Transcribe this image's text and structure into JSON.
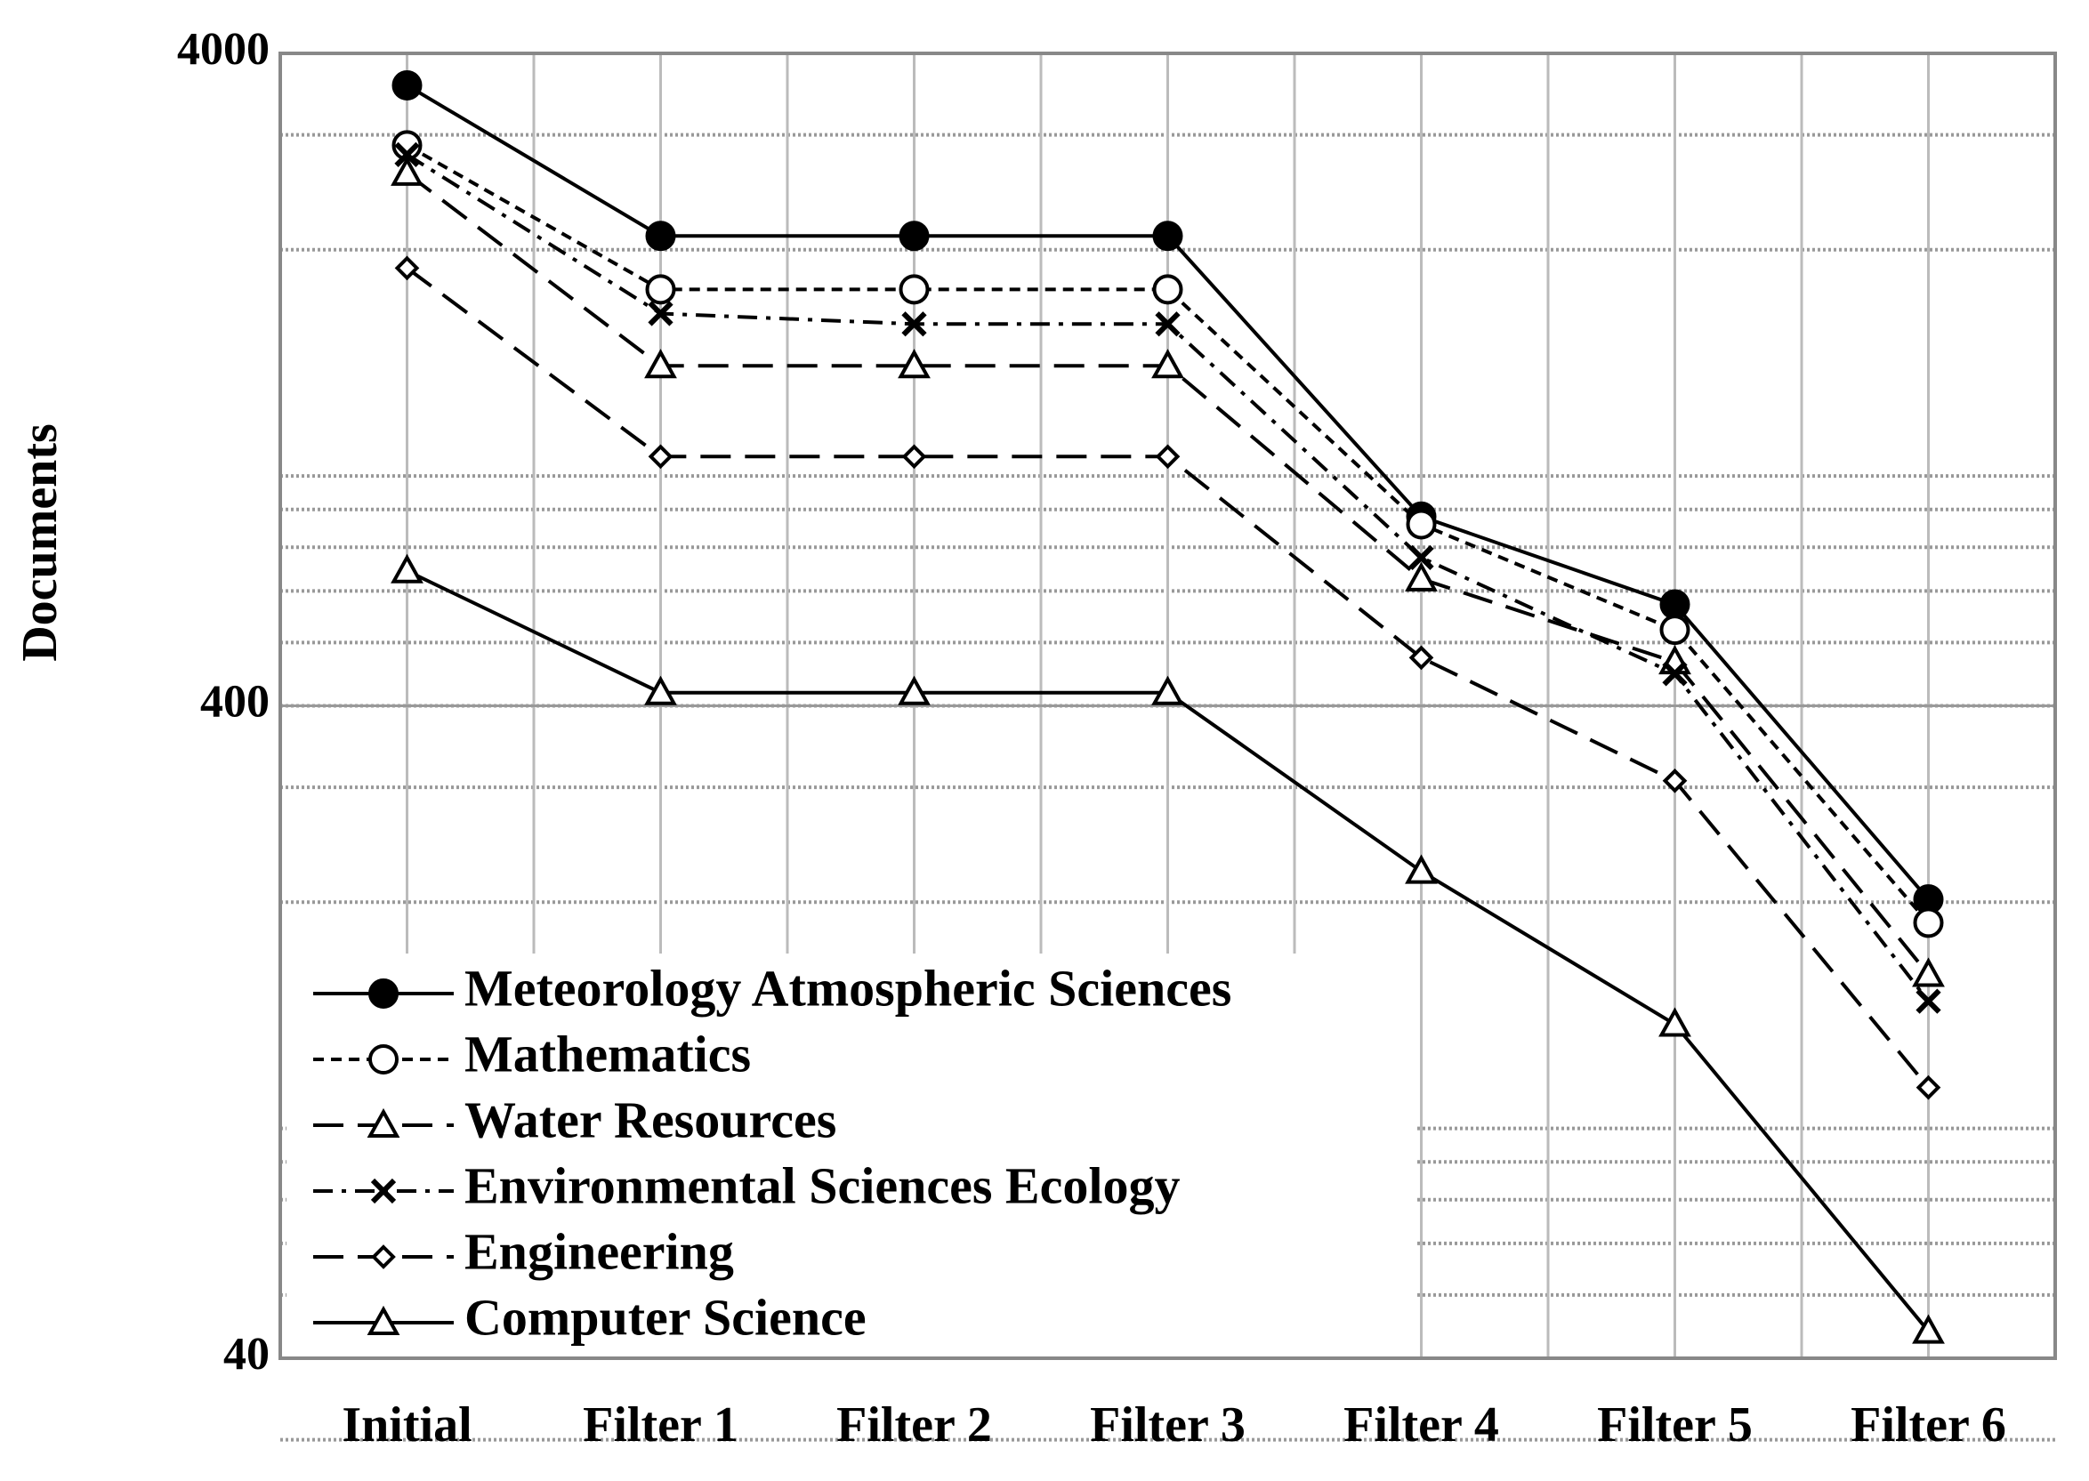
{
  "chart_data": {
    "type": "line",
    "y_label": "Documents",
    "categories": [
      "Initial",
      "Filter 1",
      "Filter 2",
      "Filter 3",
      "Filter 4",
      "Filter 5",
      "Filter 6"
    ],
    "ylim": [
      40,
      4000
    ],
    "yticks": [
      40,
      400,
      4000
    ],
    "log_scale": true,
    "grid": true,
    "legend": "lower left",
    "series": [
      {
        "name": "Meteorology Atmospheric Sciences",
        "color": "#000000",
        "marker": "filled-circle",
        "dash": "solid",
        "values": [
          3573,
          2100,
          2100,
          2100,
          780,
          572,
          202
        ]
      },
      {
        "name": "Mathematics",
        "color": "#000000",
        "marker": "open-circle",
        "dash": "short-dash",
        "values": [
          2891,
          1739,
          1739,
          1739,
          759,
          523,
          186
        ]
      },
      {
        "name": "Water Resources",
        "color": "#000000",
        "marker": "triangle",
        "dash": "long-dash",
        "values": [
          2619,
          1328,
          1328,
          1328,
          626,
          467,
          155
        ]
      },
      {
        "name": "Environmental Sciences Ecology",
        "color": "#000000",
        "marker": "x",
        "dash": "dash-dot",
        "values": [
          2798,
          1597,
          1539,
          1539,
          675,
          448,
          141
        ]
      },
      {
        "name": "Engineering",
        "color": "#000000",
        "marker": "diamond",
        "dash": "long-dash",
        "values": [
          1875,
          964,
          964,
          964,
          474,
          307,
          104
        ]
      },
      {
        "name": "Computer Science",
        "color": "#000000",
        "marker": "triangle",
        "dash": "solid",
        "values": [
          644,
          419,
          419,
          419,
          223,
          130,
          44
        ]
      }
    ]
  }
}
